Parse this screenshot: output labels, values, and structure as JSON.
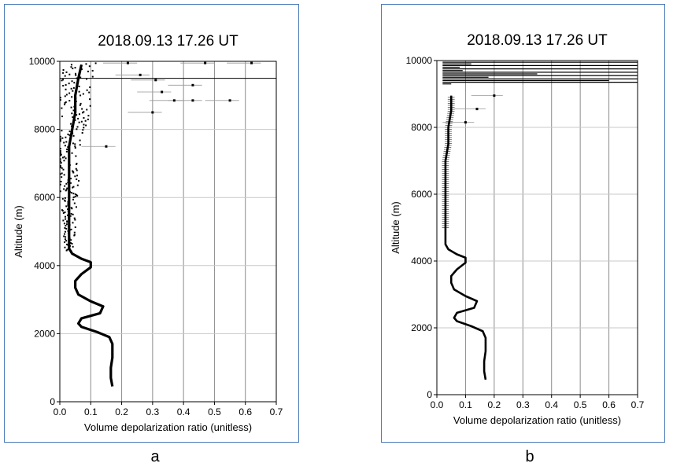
{
  "panels": [
    {
      "label": "a"
    },
    {
      "label": "b"
    }
  ],
  "chart_data": [
    {
      "type": "scatter",
      "title": "2018.09.13 17.26 UT",
      "xlabel": "Volume depolarization ratio  (unitless)",
      "ylabel": "Altitude (m)",
      "xlim": [
        0.0,
        0.7
      ],
      "ylim": [
        0,
        10000
      ],
      "xticks": [
        "0.0",
        "0.1",
        "0.2",
        "0.3",
        "0.4",
        "0.5",
        "0.6",
        "0.7"
      ],
      "yticks": [
        "0",
        "2000",
        "4000",
        "6000",
        "8000",
        "10000"
      ],
      "grid": true,
      "reference_line_altitude": 9500,
      "profile": {
        "altitude": [
          450,
          700,
          1000,
          1300,
          1700,
          1900,
          2050,
          2200,
          2300,
          2450,
          2600,
          2800,
          2950,
          3150,
          3350,
          3550,
          3750,
          3950,
          4100,
          4200,
          4350,
          4500,
          5000,
          5500,
          6000,
          6500,
          7000,
          7500,
          8000,
          8500,
          9000,
          9500,
          9900
        ],
        "ratio": [
          0.17,
          0.165,
          0.165,
          0.17,
          0.17,
          0.16,
          0.12,
          0.07,
          0.06,
          0.07,
          0.13,
          0.14,
          0.1,
          0.06,
          0.05,
          0.05,
          0.07,
          0.1,
          0.1,
          0.07,
          0.04,
          0.03,
          0.03,
          0.03,
          0.03,
          0.03,
          0.03,
          0.03,
          0.04,
          0.05,
          0.05,
          0.06,
          0.07
        ]
      },
      "outlier_points": [
        {
          "x": 0.47,
          "y": 9950
        },
        {
          "x": 0.62,
          "y": 9950
        },
        {
          "x": 0.31,
          "y": 9450
        },
        {
          "x": 0.43,
          "y": 9300
        },
        {
          "x": 0.43,
          "y": 8850
        },
        {
          "x": 0.37,
          "y": 8850
        },
        {
          "x": 0.55,
          "y": 8850
        },
        {
          "x": 0.3,
          "y": 8500
        },
        {
          "x": 0.33,
          "y": 9100
        },
        {
          "x": 0.22,
          "y": 9950
        },
        {
          "x": 0.26,
          "y": 9600
        },
        {
          "x": 0.15,
          "y": 7500
        }
      ]
    },
    {
      "type": "line",
      "title": "2018.09.13 17.26 UT",
      "xlabel": "Volume depolarization ratio  (unitless)",
      "ylabel": "Altitude (m)",
      "xlim": [
        0.0,
        0.7
      ],
      "ylim": [
        0,
        10000
      ],
      "xticks": [
        "0.0",
        "0.1",
        "0.2",
        "0.3",
        "0.4",
        "0.5",
        "0.6",
        "0.7"
      ],
      "yticks": [
        "0",
        "2000",
        "4000",
        "6000",
        "8000",
        "10000"
      ],
      "grid": true,
      "profile": {
        "altitude": [
          450,
          700,
          1000,
          1300,
          1700,
          1900,
          2050,
          2200,
          2300,
          2450,
          2600,
          2800,
          2950,
          3150,
          3350,
          3550,
          3750,
          3950,
          4100,
          4200,
          4350,
          4500,
          5000,
          5500,
          6000,
          6500,
          7000,
          7500,
          8000,
          8500,
          8950
        ],
        "ratio": [
          0.17,
          0.165,
          0.165,
          0.17,
          0.17,
          0.16,
          0.12,
          0.07,
          0.06,
          0.07,
          0.13,
          0.14,
          0.1,
          0.06,
          0.05,
          0.05,
          0.07,
          0.1,
          0.1,
          0.07,
          0.04,
          0.03,
          0.03,
          0.03,
          0.03,
          0.03,
          0.03,
          0.04,
          0.04,
          0.05,
          0.05
        ]
      },
      "cloud_layer": {
        "altitude": [
          9950,
          9900,
          9850,
          9800,
          9750,
          9700,
          9650,
          9600,
          9550,
          9500,
          9450,
          9400,
          9350,
          9300
        ],
        "ratio": [
          0.7,
          0.12,
          0.7,
          0.08,
          0.7,
          0.09,
          0.7,
          0.35,
          0.7,
          0.18,
          0.7,
          0.6,
          0.7,
          0.05
        ]
      },
      "outlier_points": [
        {
          "x": 0.2,
          "y": 8950
        },
        {
          "x": 0.14,
          "y": 8550
        },
        {
          "x": 0.1,
          "y": 8150
        }
      ]
    }
  ]
}
